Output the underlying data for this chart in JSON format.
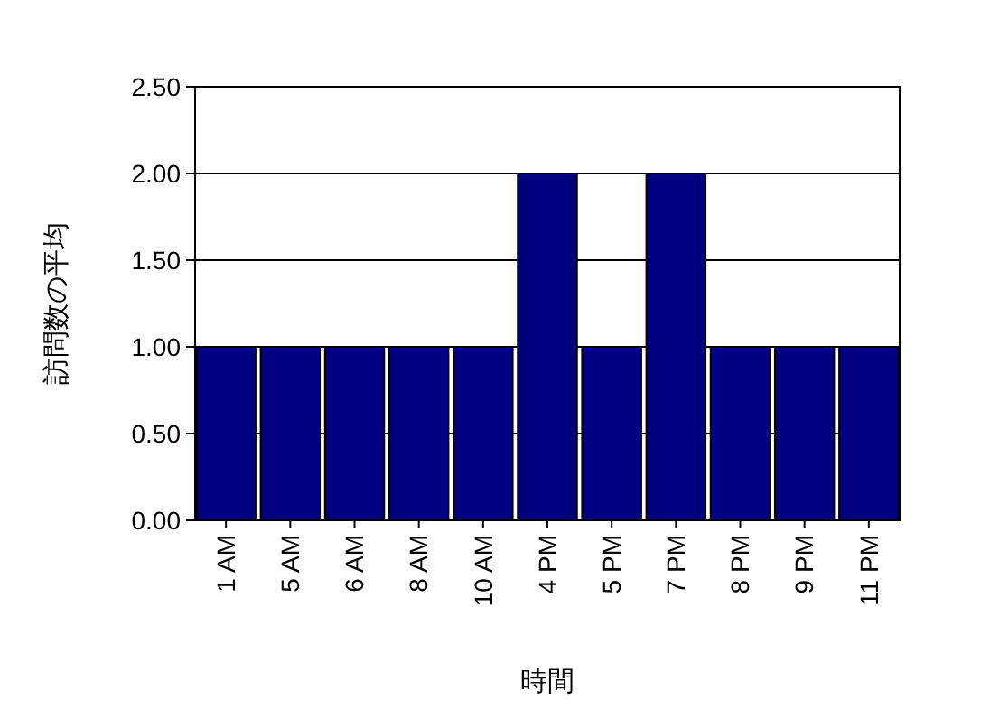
{
  "chart_data": {
    "type": "bar",
    "xlabel": "時間",
    "ylabel": "訪問数の平均",
    "categories": [
      "1 AM",
      "5 AM",
      "6 AM",
      "8 AM",
      "10 AM",
      "4 PM",
      "5 PM",
      "7 PM",
      "8 PM",
      "9 PM",
      "11 PM"
    ],
    "values": [
      1,
      1,
      1,
      1,
      1,
      2,
      1,
      2,
      1,
      1,
      1
    ],
    "color": "#000080",
    "ylim": [
      0,
      2.5
    ],
    "yticks": [
      {
        "value": 0,
        "label": "0.00"
      },
      {
        "value": 0.5,
        "label": "0.50"
      },
      {
        "value": 1,
        "label": "1.00"
      },
      {
        "value": 1.5,
        "label": "1.50"
      },
      {
        "value": 2,
        "label": "2.00"
      },
      {
        "value": 2.5,
        "label": "2.50"
      }
    ],
    "grid": "y"
  }
}
